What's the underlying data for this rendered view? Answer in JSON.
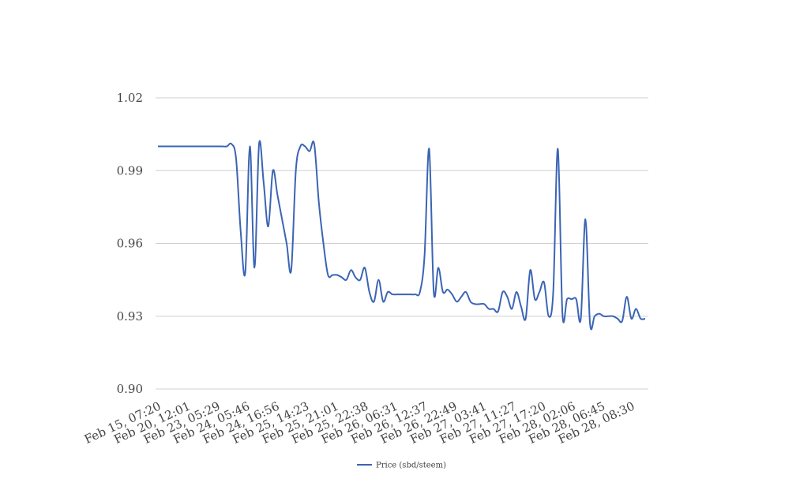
{
  "chart_data": {
    "type": "line",
    "title": "",
    "xlabel": "",
    "ylabel": "",
    "ylim": [
      0.9,
      1.02
    ],
    "yticks": [
      0.9,
      0.93,
      0.96,
      0.99,
      1.02
    ],
    "ytick_labels": [
      "0.90",
      "0.93",
      "0.96",
      "0.99",
      "1.02"
    ],
    "grid": "horizontal",
    "legend_position": "bottom",
    "x_tick_labels": [
      "Feb 15, 07:20",
      "Feb 20, 12:01",
      "Feb 23, 05:29",
      "Feb 24, 05:46",
      "Feb 24, 16:56",
      "Feb 25, 14:23",
      "Feb 25, 21:01",
      "Feb 25, 22:38",
      "Feb 26, 06:31",
      "Feb 26, 12:37",
      "Feb 26, 22:49",
      "Feb 27, 03:41",
      "Feb 27, 11:27",
      "Feb 27, 17:20",
      "Feb 28, 02:06",
      "Feb 28, 06:45",
      "Feb 28, 08:30"
    ],
    "series": [
      {
        "name": "Price (sbd/steem)",
        "color": "#3b64b4",
        "values": [
          1.0,
          1.0,
          1.0,
          1.0,
          1.0,
          1.0,
          1.0,
          1.0,
          1.0,
          1.0,
          1.0,
          1.0,
          1.0,
          1.0,
          1.0,
          1.0,
          1.001,
          0.995,
          0.965,
          0.948,
          1.0,
          0.95,
          1.001,
          0.985,
          0.967,
          0.99,
          0.98,
          0.97,
          0.96,
          0.949,
          0.99,
          1.0,
          1.0,
          0.998,
          1.001,
          0.977,
          0.96,
          0.947,
          0.947,
          0.947,
          0.946,
          0.945,
          0.949,
          0.946,
          0.945,
          0.95,
          0.94,
          0.936,
          0.945,
          0.936,
          0.94,
          0.939,
          0.939,
          0.939,
          0.939,
          0.939,
          0.939,
          0.94,
          0.955,
          0.999,
          0.94,
          0.95,
          0.94,
          0.941,
          0.939,
          0.936,
          0.938,
          0.94,
          0.936,
          0.935,
          0.935,
          0.935,
          0.933,
          0.933,
          0.932,
          0.94,
          0.938,
          0.933,
          0.94,
          0.934,
          0.929,
          0.949,
          0.937,
          0.94,
          0.944,
          0.93,
          0.94,
          0.999,
          0.931,
          0.937,
          0.937,
          0.937,
          0.929,
          0.97,
          0.927,
          0.93,
          0.931,
          0.93,
          0.93,
          0.93,
          0.929,
          0.928,
          0.938,
          0.929,
          0.933,
          0.929,
          0.929
        ]
      }
    ]
  }
}
